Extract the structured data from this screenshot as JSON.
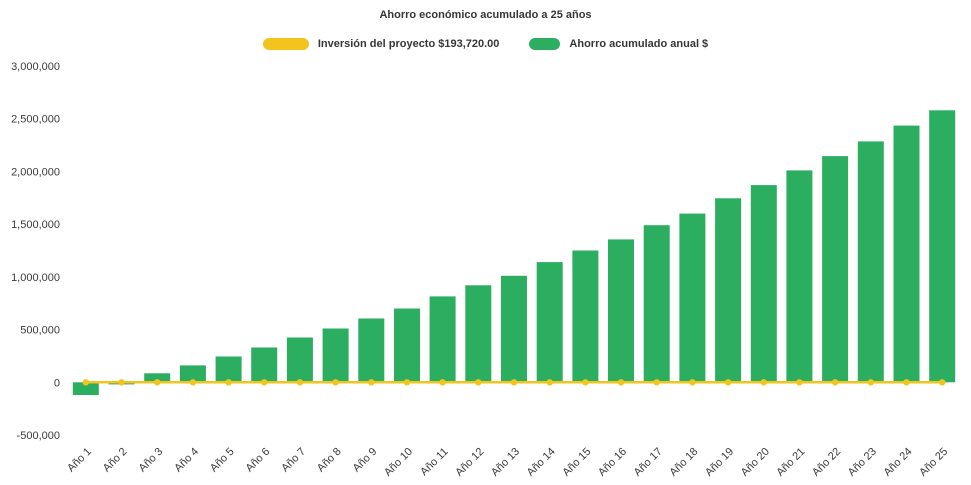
{
  "chart_data": {
    "type": "bar",
    "title": "Ahorro económico acumulado a 25 años",
    "xlabel": "",
    "ylabel": "",
    "ylim": [
      -500000,
      3000000
    ],
    "y_ticks": [
      -500000,
      0,
      500000,
      1000000,
      1500000,
      2000000,
      2500000,
      3000000
    ],
    "grid": false,
    "legend_position": "top",
    "categories": [
      "Año 1",
      "Año 2",
      "Año 3",
      "Año 4",
      "Año 5",
      "Año 6",
      "Año 7",
      "Año 8",
      "Año 9",
      "Año 10",
      "Año 11",
      "Año 12",
      "Año 13",
      "Año 14",
      "Año 15",
      "Año 16",
      "Año 17",
      "Año 18",
      "Año 19",
      "Año 20",
      "Año 21",
      "Año 22",
      "Año 23",
      "Año 24",
      "Año 25"
    ],
    "series": [
      {
        "name": "Inversión del proyecto $193,720.00",
        "type": "line",
        "color": "#F2C41D",
        "values": [
          0,
          0,
          0,
          0,
          0,
          0,
          0,
          0,
          0,
          0,
          0,
          0,
          0,
          0,
          0,
          0,
          0,
          0,
          0,
          0,
          0,
          0,
          0,
          0,
          0
        ]
      },
      {
        "name": "Ahorro acumulado anual $",
        "type": "bar",
        "color": "#2BAE60",
        "values": [
          -120000,
          -20000,
          85000,
          160000,
          245000,
          330000,
          425000,
          510000,
          605000,
          700000,
          815000,
          920000,
          1010000,
          1140000,
          1250000,
          1355000,
          1490000,
          1600000,
          1745000,
          1870000,
          2010000,
          2145000,
          2285000,
          2435000,
          2580000
        ]
      }
    ]
  },
  "colors": {
    "text": "#3b3b3b",
    "background": "#ffffff",
    "investment_yellow": "#F2C41D",
    "savings_green": "#2BAE60"
  }
}
